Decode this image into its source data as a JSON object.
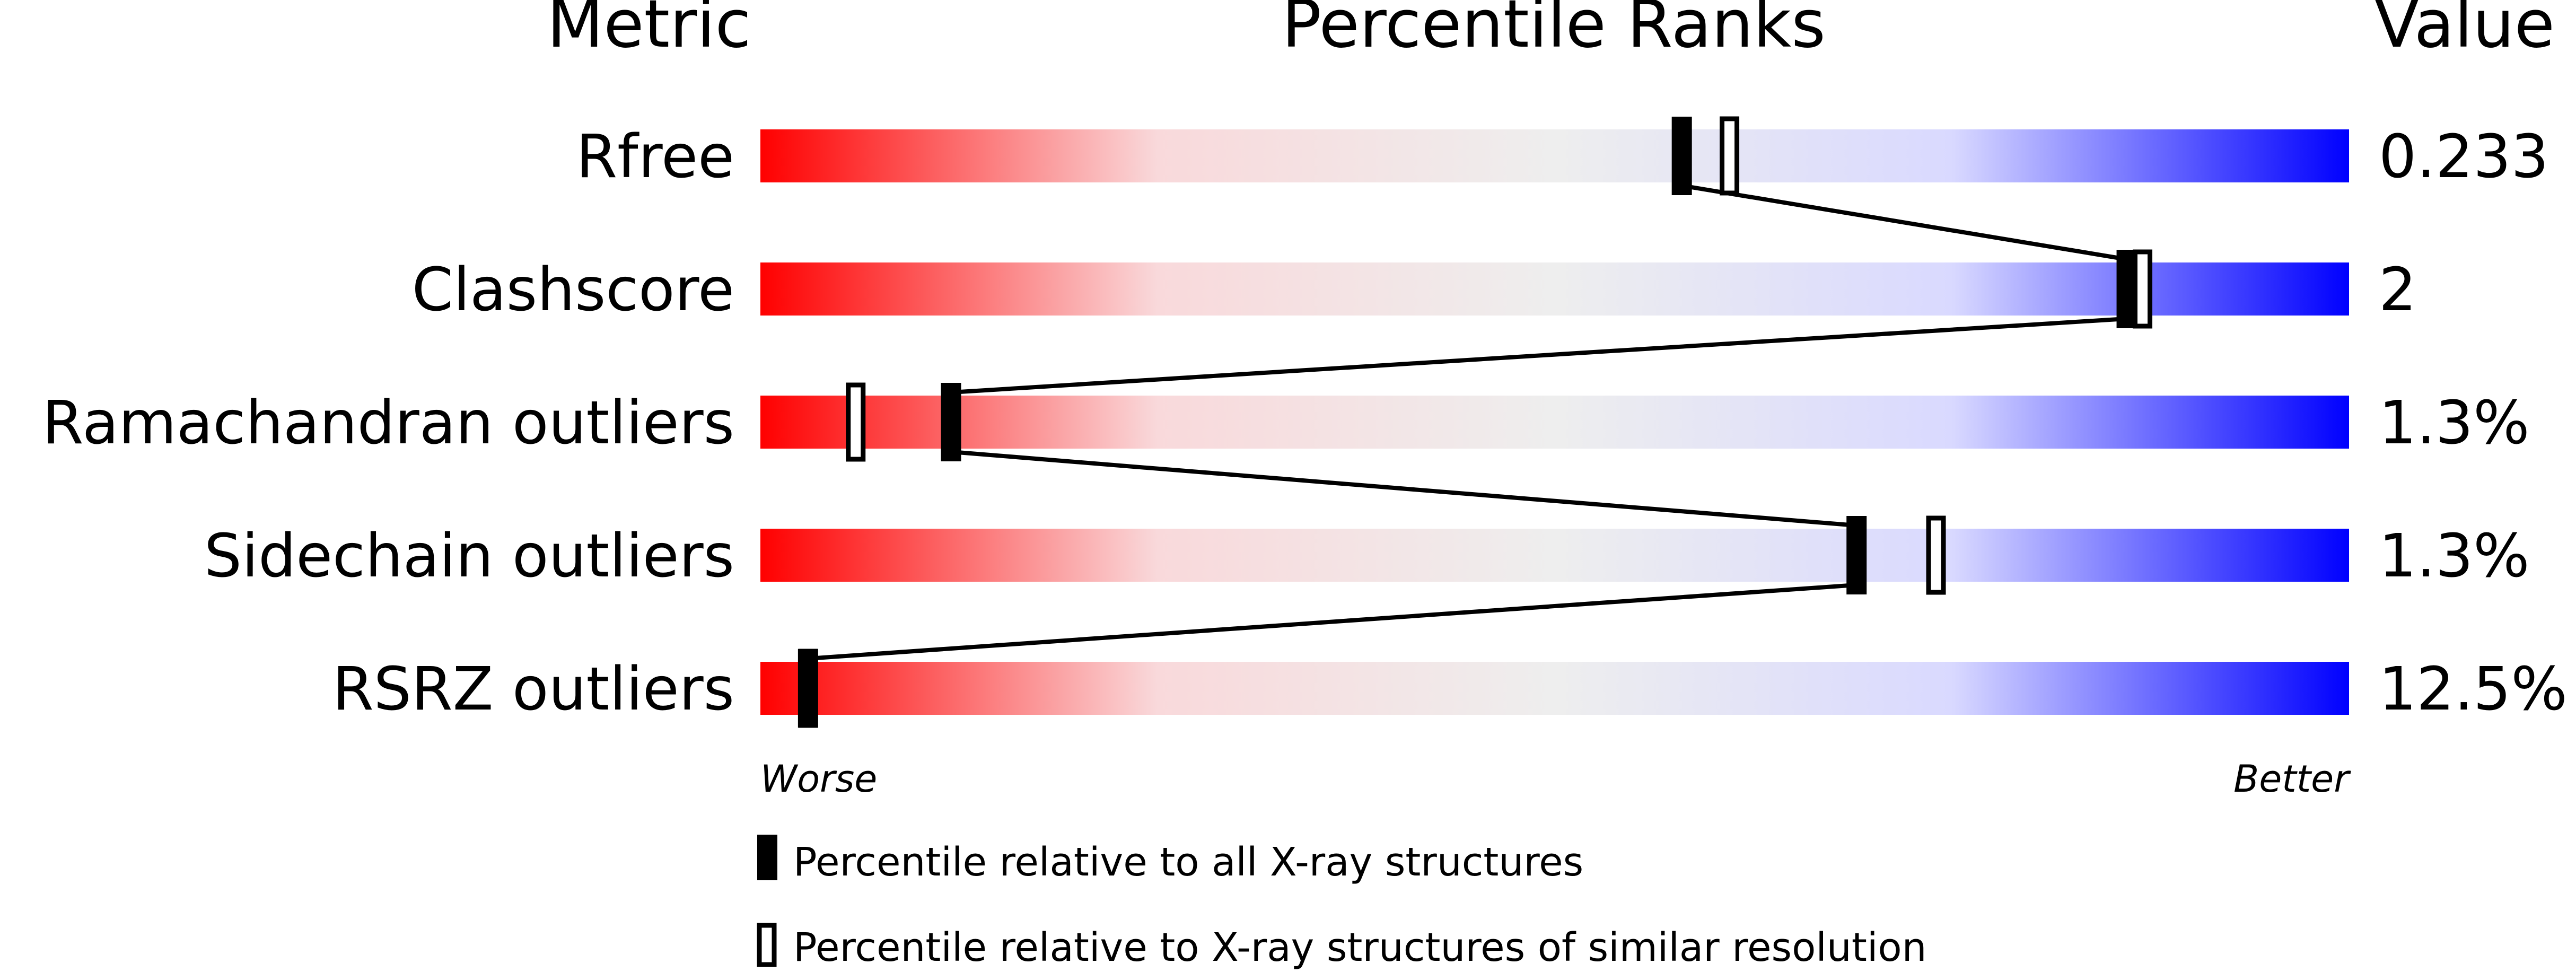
{
  "chart_data": {
    "type": "bar",
    "headers": {
      "metric": "Metric",
      "ranks": "Percentile Ranks",
      "value": "Value"
    },
    "xlim": [
      0,
      100
    ],
    "scale_labels": {
      "low": "Worse",
      "high": "Better"
    },
    "gradient_colors": [
      "#ff0000",
      "#f9d9db",
      "#eeeeee",
      "#d9d9ff",
      "#0000ff"
    ],
    "marker_color": "#000000",
    "metrics": [
      {
        "name": "Rfree",
        "value": "0.233",
        "percentile_all": 58,
        "percentile_similar": 61
      },
      {
        "name": "Clashscore",
        "value": "2",
        "percentile_all": 86,
        "percentile_similar": 87
      },
      {
        "name": "Ramachandran outliers",
        "value": "1.3%",
        "percentile_all": 12,
        "percentile_similar": 6
      },
      {
        "name": "Sidechain outliers",
        "value": "1.3%",
        "percentile_all": 69,
        "percentile_similar": 74
      },
      {
        "name": "RSRZ outliers",
        "value": "12.5%",
        "percentile_all": 3,
        "percentile_similar": 3
      }
    ],
    "legend": [
      {
        "marker": "filled",
        "label": "Percentile relative to all X-ray structures"
      },
      {
        "marker": "open",
        "label": "Percentile relative to X-ray structures of similar resolution"
      }
    ]
  }
}
